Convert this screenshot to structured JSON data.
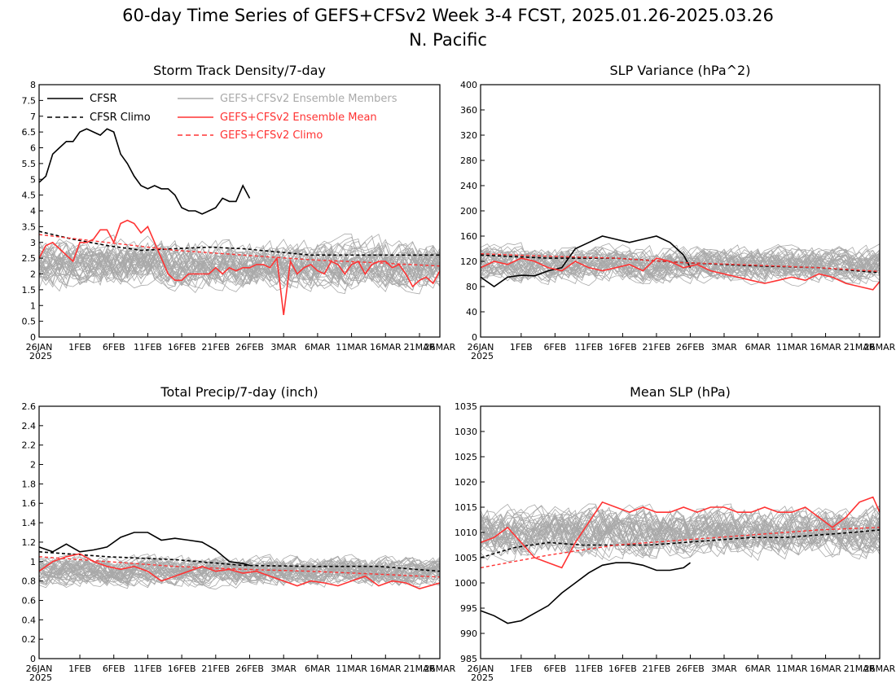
{
  "figure": {
    "title_line1": "60-day Time Series of GEFS+CFSv2 Week 3-4 FCST, 2025.01.26-2025.03.26",
    "title_line2": "N. Pacific"
  },
  "colors": {
    "cfsr": "#000000",
    "ensemble_members": "#a9a9a9",
    "ensemble_mean": "#ff3333",
    "gefs_climo": "#ff3333",
    "cfsr_climo": "#000000"
  },
  "legend": {
    "cfsr": "CFSR",
    "cfsr_climo": "CFSR Climo",
    "members": "GEFS+CFSv2 Ensemble Members",
    "mean": "GEFS+CFSv2 Ensemble Mean",
    "climo": "GEFS+CFSv2 Climo"
  },
  "x_axis": {
    "days": 60,
    "tick_days": [
      0,
      6,
      11,
      16,
      21,
      26,
      31,
      36,
      41,
      46,
      51,
      56,
      59
    ],
    "tick_labels": [
      "26JAN",
      "1FEB",
      "6FEB",
      "11FEB",
      "16FEB",
      "21FEB",
      "26FEB",
      "3MAR",
      "6MAR",
      "11MAR",
      "16MAR",
      "21MAR",
      "26MAR"
    ],
    "year_label": "2025"
  },
  "chart_data": [
    {
      "type": "line",
      "title": "Storm Track Density/7-day",
      "ylim": [
        0,
        8
      ],
      "yticks": [
        "0",
        "0.5",
        "1",
        "1.5",
        "2",
        "2.5",
        "3",
        "3.5",
        "4",
        "4.5",
        "5",
        "5.5",
        "6",
        "6.5",
        "7",
        "7.5",
        "8"
      ],
      "ytick_values": [
        0,
        0.5,
        1,
        1.5,
        2,
        2.5,
        3,
        3.5,
        4,
        4.5,
        5,
        5.5,
        6,
        6.5,
        7,
        7.5,
        8
      ],
      "members": {
        "center": 2.3,
        "spread": 1.1,
        "count": 40
      },
      "series": [
        {
          "name": "CFSR",
          "key": "cfsr",
          "x": [
            0,
            1,
            2,
            3,
            4,
            5,
            6,
            7,
            8,
            9,
            10,
            11,
            12,
            13,
            14,
            15,
            16,
            17,
            18,
            19,
            20,
            21,
            22,
            23,
            24,
            25,
            26,
            27,
            28,
            29,
            30,
            31
          ],
          "values": [
            4.9,
            5.1,
            5.8,
            6.0,
            6.2,
            6.2,
            6.5,
            6.6,
            6.5,
            6.4,
            6.6,
            6.5,
            5.8,
            5.5,
            5.1,
            4.8,
            4.7,
            4.8,
            4.7,
            4.7,
            4.5,
            4.1,
            4.0,
            4.0,
            3.9,
            4.0,
            4.1,
            4.4,
            4.3,
            4.3,
            4.8,
            4.4
          ]
        },
        {
          "name": "CFSR Climo",
          "key": "cfsr_climo",
          "x": [
            0,
            5,
            10,
            15,
            20,
            25,
            30,
            35,
            40,
            45,
            50,
            55,
            59
          ],
          "values": [
            3.35,
            3.1,
            2.9,
            2.75,
            2.8,
            2.85,
            2.8,
            2.7,
            2.6,
            2.6,
            2.6,
            2.6,
            2.6
          ]
        },
        {
          "name": "GEFS+CFSv2 Ensemble Mean",
          "key": "mean",
          "x": [
            0,
            1,
            2,
            3,
            4,
            5,
            6,
            7,
            8,
            9,
            10,
            11,
            12,
            13,
            14,
            15,
            16,
            17,
            18,
            19,
            20,
            21,
            22,
            23,
            24,
            25,
            26,
            27,
            28,
            29,
            30,
            31,
            32,
            33,
            34,
            35,
            36,
            37,
            38,
            39,
            40,
            41,
            42,
            43,
            44,
            45,
            46,
            47,
            48,
            49,
            50,
            51,
            52,
            53,
            54,
            55,
            56,
            57,
            58,
            59
          ],
          "values": [
            2.5,
            2.9,
            3.0,
            2.8,
            2.6,
            2.4,
            3.0,
            3.0,
            3.1,
            3.4,
            3.4,
            3.0,
            3.6,
            3.7,
            3.6,
            3.3,
            3.5,
            3.0,
            2.5,
            2.0,
            1.8,
            1.8,
            2.0,
            2.0,
            2.0,
            2.0,
            2.2,
            2.0,
            2.2,
            2.1,
            2.2,
            2.2,
            2.3,
            2.3,
            2.2,
            2.5,
            0.7,
            2.4,
            2.0,
            2.2,
            2.3,
            2.1,
            2.0,
            2.4,
            2.3,
            2.0,
            2.3,
            2.4,
            2.0,
            2.3,
            2.4,
            2.4,
            2.2,
            2.3,
            2.0,
            1.6,
            1.8,
            1.9,
            1.7,
            2.1
          ]
        },
        {
          "name": "GEFS+CFSv2 Climo",
          "key": "climo",
          "x": [
            0,
            10,
            20,
            30,
            40,
            50,
            59
          ],
          "values": [
            3.25,
            3.0,
            2.75,
            2.6,
            2.45,
            2.35,
            2.25
          ]
        }
      ]
    },
    {
      "type": "line",
      "title": "SLP Variance (hPa^2)",
      "ylim": [
        0,
        400
      ],
      "yticks": [
        "0",
        "40",
        "80",
        "120",
        "160",
        "200",
        "240",
        "280",
        "320",
        "360",
        "400"
      ],
      "ytick_values": [
        0,
        40,
        80,
        120,
        160,
        200,
        240,
        280,
        320,
        360,
        400
      ],
      "members": {
        "center": 115,
        "spread": 40,
        "count": 40
      },
      "series": [
        {
          "name": "CFSR",
          "key": "cfsr",
          "x": [
            0,
            2,
            4,
            6,
            8,
            10,
            12,
            14,
            16,
            18,
            20,
            22,
            24,
            26,
            28,
            30,
            31
          ],
          "values": [
            95,
            80,
            95,
            98,
            97,
            105,
            110,
            140,
            150,
            160,
            155,
            150,
            155,
            160,
            150,
            130,
            110
          ]
        },
        {
          "name": "CFSR Climo",
          "key": "cfsr_climo",
          "x": [
            0,
            10,
            20,
            30,
            40,
            50,
            59
          ],
          "values": [
            130,
            125,
            125,
            118,
            113,
            110,
            102
          ]
        },
        {
          "name": "GEFS+CFSv2 Ensemble Mean",
          "key": "mean",
          "x": [
            0,
            2,
            4,
            6,
            8,
            10,
            12,
            14,
            16,
            18,
            20,
            22,
            24,
            26,
            28,
            30,
            32,
            34,
            36,
            38,
            40,
            42,
            44,
            46,
            48,
            50,
            52,
            54,
            56,
            58,
            59
          ],
          "values": [
            110,
            120,
            115,
            125,
            120,
            110,
            105,
            120,
            110,
            105,
            110,
            115,
            105,
            125,
            120,
            110,
            115,
            105,
            100,
            95,
            90,
            85,
            90,
            95,
            90,
            100,
            95,
            85,
            80,
            75,
            88
          ]
        },
        {
          "name": "GEFS+CFSv2 Climo",
          "key": "climo",
          "x": [
            0,
            10,
            20,
            30,
            40,
            50,
            59
          ],
          "values": [
            132,
            128,
            125,
            118,
            114,
            110,
            104
          ]
        }
      ]
    },
    {
      "type": "line",
      "title": "Total Precip/7-day (inch)",
      "ylim": [
        0,
        2.6
      ],
      "yticks": [
        "0",
        "0.2",
        "0.4",
        "0.6",
        "0.8",
        "1",
        "1.2",
        "1.4",
        "1.6",
        "1.8",
        "2",
        "2.2",
        "2.4",
        "2.6"
      ],
      "ytick_values": [
        0,
        0.2,
        0.4,
        0.6,
        0.8,
        1.0,
        1.2,
        1.4,
        1.6,
        1.8,
        2.0,
        2.2,
        2.4,
        2.6
      ],
      "members": {
        "center": 0.9,
        "spread": 0.22,
        "count": 40
      },
      "series": [
        {
          "name": "CFSR",
          "key": "cfsr",
          "x": [
            0,
            2,
            4,
            6,
            8,
            10,
            12,
            14,
            16,
            18,
            20,
            22,
            24,
            26,
            28,
            30,
            31
          ],
          "values": [
            1.15,
            1.1,
            1.18,
            1.1,
            1.12,
            1.15,
            1.25,
            1.3,
            1.3,
            1.22,
            1.24,
            1.22,
            1.2,
            1.12,
            1.0,
            0.98,
            0.96
          ]
        },
        {
          "name": "CFSR Climo",
          "key": "cfsr_climo",
          "x": [
            0,
            10,
            20,
            30,
            40,
            50,
            59
          ],
          "values": [
            1.1,
            1.05,
            1.02,
            0.96,
            0.95,
            0.95,
            0.9
          ]
        },
        {
          "name": "GEFS+CFSv2 Ensemble Mean",
          "key": "mean",
          "x": [
            0,
            2,
            4,
            6,
            8,
            10,
            12,
            14,
            16,
            18,
            20,
            22,
            24,
            26,
            28,
            30,
            32,
            34,
            36,
            38,
            40,
            42,
            44,
            46,
            48,
            50,
            52,
            54,
            56,
            58,
            59
          ],
          "values": [
            0.9,
            1.0,
            1.05,
            1.08,
            1.0,
            0.95,
            0.92,
            0.95,
            0.9,
            0.8,
            0.85,
            0.9,
            0.95,
            0.9,
            0.92,
            0.88,
            0.9,
            0.85,
            0.8,
            0.75,
            0.8,
            0.78,
            0.75,
            0.8,
            0.85,
            0.75,
            0.8,
            0.78,
            0.72,
            0.76,
            0.78
          ]
        },
        {
          "name": "GEFS+CFSv2 Climo",
          "key": "climo",
          "x": [
            0,
            10,
            20,
            30,
            40,
            50,
            59
          ],
          "values": [
            1.05,
            1.0,
            0.95,
            0.92,
            0.9,
            0.87,
            0.84
          ]
        }
      ]
    },
    {
      "type": "line",
      "title": "Mean SLP (hPa)",
      "ylim": [
        985,
        1035
      ],
      "yticks": [
        "985",
        "990",
        "995",
        "1000",
        "1005",
        "1010",
        "1015",
        "1020",
        "1025",
        "1030",
        "1035"
      ],
      "ytick_values": [
        985,
        990,
        995,
        1000,
        1005,
        1010,
        1015,
        1020,
        1025,
        1030,
        1035
      ],
      "members": {
        "center": 1010,
        "spread": 7,
        "count": 40
      },
      "series": [
        {
          "name": "CFSR",
          "key": "cfsr",
          "x": [
            0,
            2,
            4,
            6,
            8,
            10,
            12,
            14,
            16,
            18,
            20,
            22,
            24,
            26,
            28,
            30,
            31
          ],
          "values": [
            994.5,
            993.5,
            992,
            992.5,
            994,
            995.5,
            998,
            1000,
            1002,
            1003.5,
            1004,
            1004,
            1003.5,
            1002.5,
            1002.5,
            1003,
            1004
          ]
        },
        {
          "name": "CFSR Climo",
          "key": "cfsr_climo",
          "x": [
            0,
            5,
            10,
            15,
            20,
            25,
            30,
            35,
            40,
            45,
            50,
            55,
            59
          ],
          "values": [
            1005,
            1007,
            1008,
            1007.5,
            1007.5,
            1007.5,
            1008,
            1008.5,
            1009,
            1009,
            1009.5,
            1010,
            1010.5
          ]
        },
        {
          "name": "GEFS+CFSv2 Ensemble Mean",
          "key": "mean",
          "x": [
            0,
            2,
            4,
            6,
            8,
            10,
            12,
            14,
            16,
            18,
            20,
            22,
            24,
            26,
            28,
            30,
            32,
            34,
            36,
            38,
            40,
            42,
            44,
            46,
            48,
            50,
            52,
            54,
            56,
            58,
            59
          ],
          "values": [
            1008,
            1009,
            1011,
            1008,
            1005,
            1004,
            1003,
            1008,
            1012,
            1016,
            1015,
            1014,
            1015,
            1014,
            1014,
            1015,
            1014,
            1015,
            1015,
            1014,
            1014,
            1015,
            1014,
            1014,
            1015,
            1013,
            1011,
            1013,
            1016,
            1017,
            1014
          ]
        },
        {
          "name": "GEFS+CFSv2 Climo",
          "key": "climo",
          "x": [
            0,
            10,
            20,
            30,
            40,
            50,
            59
          ],
          "values": [
            1003,
            1005.5,
            1007.5,
            1008.5,
            1009.5,
            1010.5,
            1011
          ]
        }
      ]
    }
  ]
}
